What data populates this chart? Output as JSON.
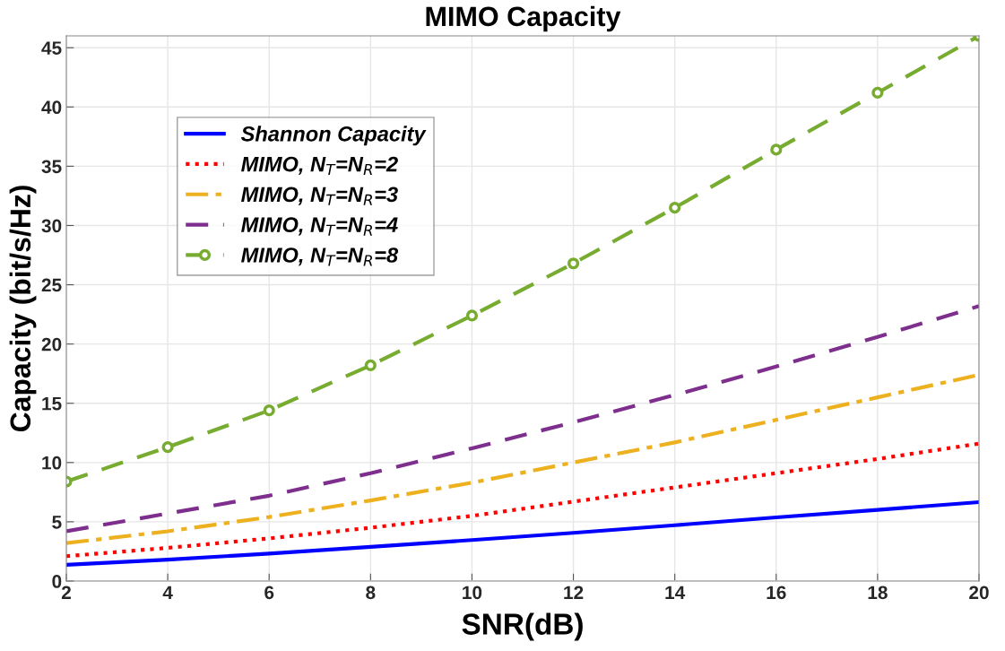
{
  "chart_data": {
    "type": "line",
    "title": "MIMO Capacity",
    "xlabel": "SNR(dB)",
    "ylabel": "Capacity (bit/s/Hz)",
    "x": [
      2,
      4,
      6,
      8,
      10,
      12,
      14,
      16,
      18,
      20
    ],
    "series": [
      {
        "name": "Shannon Capacity",
        "color": "#0000ff",
        "line_style": "solid",
        "marker": "none",
        "values": [
          1.37,
          1.81,
          2.32,
          2.88,
          3.46,
          4.07,
          4.71,
          5.37,
          6.01,
          6.66
        ]
      },
      {
        "name": "MIMO, N$_{T}$=N$_{R}$=2",
        "color": "#ff0000",
        "line_style": "dotted",
        "marker": "none",
        "values": [
          2.1,
          2.8,
          3.6,
          4.5,
          5.5,
          6.7,
          7.9,
          9.1,
          10.3,
          11.6
        ]
      },
      {
        "name": "MIMO, N$_{T}$=N$_{R}$=3",
        "color": "#edb120",
        "line_style": "dashdot",
        "marker": "none",
        "values": [
          3.2,
          4.2,
          5.4,
          6.8,
          8.3,
          10.0,
          11.7,
          13.6,
          15.5,
          17.4
        ]
      },
      {
        "name": "MIMO, N$_{T}$=N$_{R}$=4",
        "color": "#7e2f8e",
        "line_style": "dashed",
        "marker": "none",
        "values": [
          4.2,
          5.7,
          7.2,
          9.1,
          11.2,
          13.4,
          15.7,
          18.1,
          20.6,
          23.2
        ]
      },
      {
        "name": "MIMO, N$_{T}$=N$_{R}$=8",
        "color": "#77ac30",
        "line_style": "dashed",
        "marker": "circle",
        "values": [
          8.4,
          11.3,
          14.4,
          18.2,
          22.4,
          26.8,
          31.5,
          36.4,
          41.2,
          46.0
        ]
      }
    ],
    "xlim": [
      2,
      20
    ],
    "xticks": [
      2,
      4,
      6,
      8,
      10,
      12,
      14,
      16,
      18,
      20
    ],
    "ylim": [
      0,
      46
    ],
    "yticks": [
      0,
      5,
      10,
      15,
      20,
      25,
      30,
      35,
      40,
      45
    ],
    "grid": true,
    "legend": "top left"
  }
}
